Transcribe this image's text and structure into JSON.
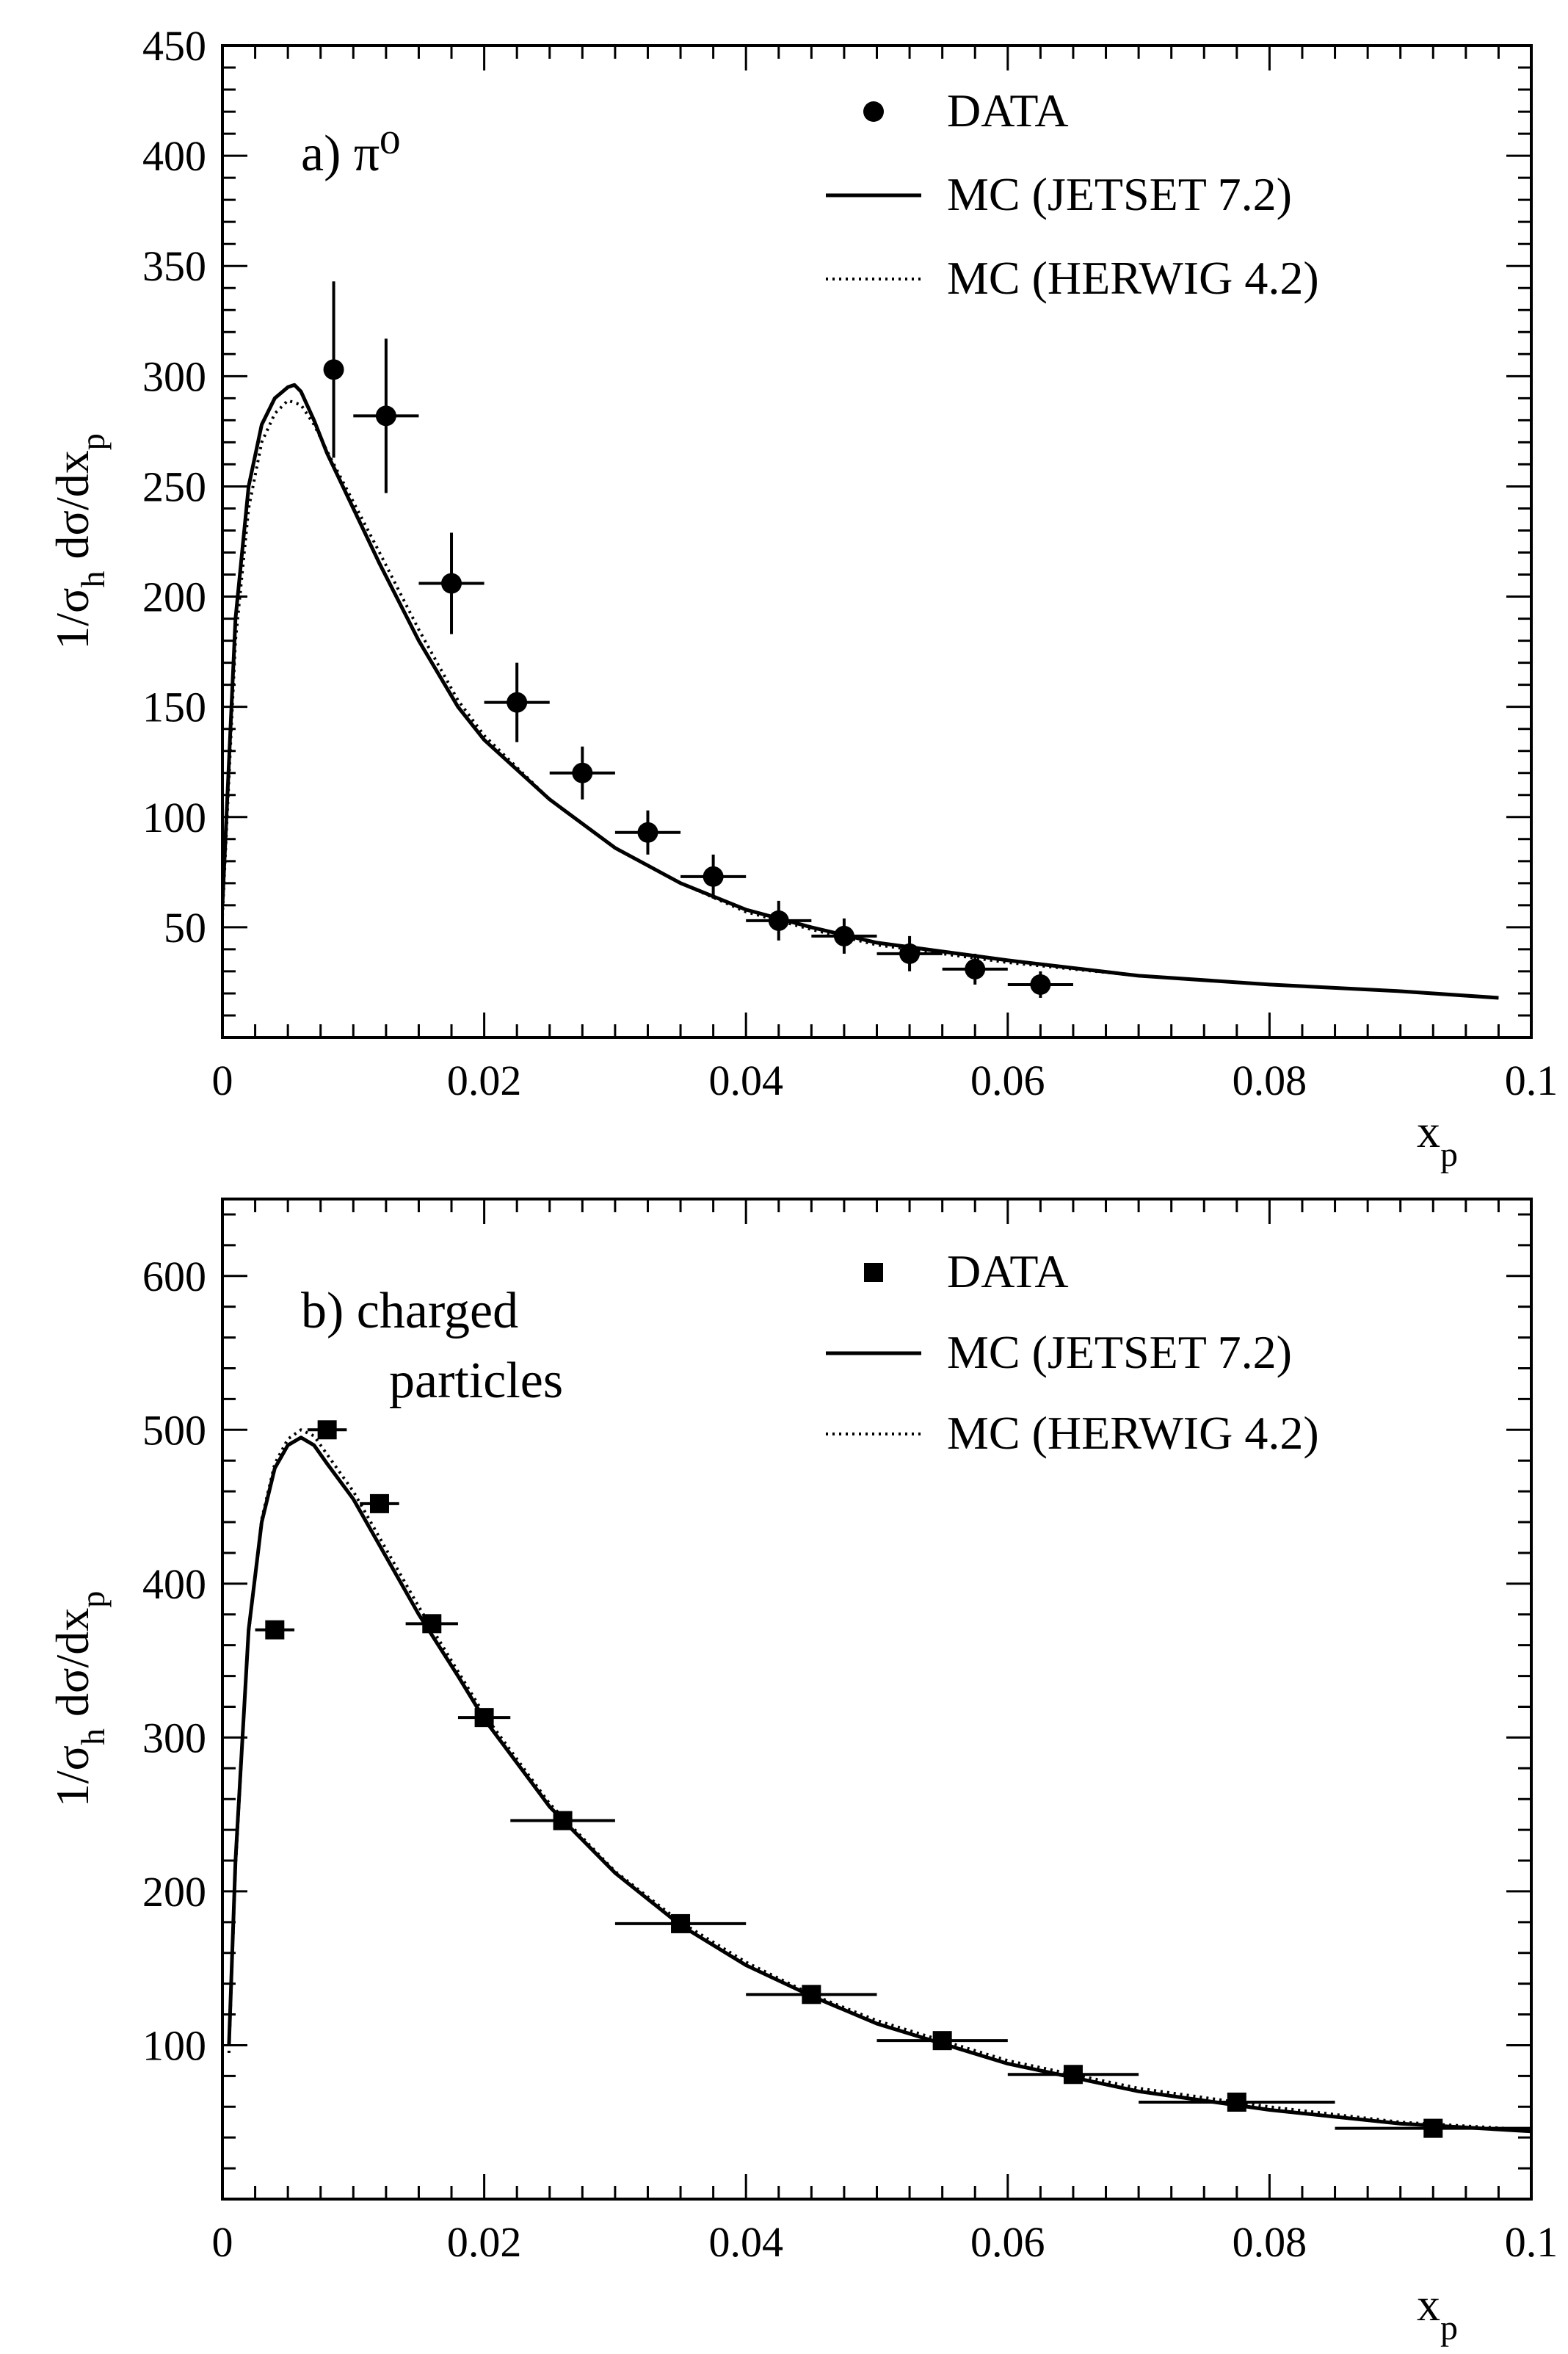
{
  "chart_data": [
    {
      "type": "scatter",
      "panel_label": "a) π⁰",
      "xlabel": "x",
      "xlabel_sub": "p",
      "ylabel": "1/σ",
      "ylabel_sub1": "h",
      "ylabel_mid": " dσ/dx",
      "ylabel_sub2": "p",
      "xlim": [
        0,
        0.1
      ],
      "ylim": [
        0,
        450
      ],
      "x_ticks": [
        0,
        0.02,
        0.04,
        0.06,
        0.08
      ],
      "x_tick_labels": [
        "0",
        "0.02",
        "0.04",
        "0.06",
        "0.08",
        "0.1"
      ],
      "x_tick_values": [
        0,
        0.02,
        0.04,
        0.06,
        0.08,
        0.1
      ],
      "y_tick_values": [
        50,
        100,
        150,
        200,
        250,
        300,
        350,
        400,
        450
      ],
      "y_tick_labels": [
        "50",
        "100",
        "150",
        "200",
        "250",
        "300",
        "350",
        "400",
        "450"
      ],
      "legend": {
        "position": "top-right",
        "entries": [
          {
            "label": "DATA",
            "style": "circle-marker"
          },
          {
            "label": "MC (JETSET 7.2)",
            "style": "solid"
          },
          {
            "label": "MC (HERWIG 4.2)",
            "style": "dotted"
          }
        ]
      },
      "series": [
        {
          "name": "DATA",
          "marker": "circle",
          "points": [
            {
              "x": 0.0085,
              "y": 303,
              "xerr": 0.0,
              "yerr": 40
            },
            {
              "x": 0.0125,
              "y": 282,
              "xerr": 0.0025,
              "yerr": 35
            },
            {
              "x": 0.0175,
              "y": 206,
              "xerr": 0.0025,
              "yerr": 23
            },
            {
              "x": 0.0225,
              "y": 152,
              "xerr": 0.0025,
              "yerr": 18
            },
            {
              "x": 0.0275,
              "y": 120,
              "xerr": 0.0025,
              "yerr": 12
            },
            {
              "x": 0.0325,
              "y": 93,
              "xerr": 0.0025,
              "yerr": 10
            },
            {
              "x": 0.0375,
              "y": 73,
              "xerr": 0.0025,
              "yerr": 10
            },
            {
              "x": 0.0425,
              "y": 53,
              "xerr": 0.0025,
              "yerr": 9
            },
            {
              "x": 0.0475,
              "y": 46,
              "xerr": 0.0025,
              "yerr": 8
            },
            {
              "x": 0.0525,
              "y": 38,
              "xerr": 0.0025,
              "yerr": 8
            },
            {
              "x": 0.0575,
              "y": 31,
              "xerr": 0.0025,
              "yerr": 7
            },
            {
              "x": 0.0625,
              "y": 24,
              "xerr": 0.0025,
              "yerr": 6
            }
          ]
        },
        {
          "name": "MC (JETSET 7.2)",
          "style": "solid",
          "x": [
            0.0,
            0.001,
            0.002,
            0.003,
            0.004,
            0.005,
            0.0055,
            0.006,
            0.007,
            0.008,
            0.01,
            0.012,
            0.015,
            0.018,
            0.02,
            0.025,
            0.03,
            0.035,
            0.04,
            0.045,
            0.05,
            0.06,
            0.07,
            0.08,
            0.09,
            0.0975
          ],
          "y": [
            60,
            190,
            250,
            278,
            290,
            295,
            296,
            293,
            280,
            265,
            240,
            215,
            180,
            150,
            135,
            108,
            86,
            70,
            58,
            50,
            43,
            35,
            28,
            24,
            21,
            18
          ]
        },
        {
          "name": "MC (HERWIG 4.2)",
          "style": "dotted",
          "x": [
            0.0,
            0.001,
            0.002,
            0.003,
            0.004,
            0.005,
            0.006,
            0.007,
            0.008,
            0.01,
            0.012,
            0.015,
            0.018,
            0.02,
            0.025,
            0.03,
            0.035,
            0.04,
            0.045,
            0.05,
            0.06,
            0.07,
            0.08,
            0.09,
            0.0975
          ],
          "y": [
            55,
            180,
            240,
            270,
            283,
            289,
            287,
            278,
            266,
            243,
            220,
            185,
            153,
            137,
            108,
            86,
            70,
            57,
            49,
            42,
            34,
            28,
            24,
            21,
            18
          ]
        }
      ]
    },
    {
      "type": "scatter",
      "panel_label_line1": "b) charged",
      "panel_label_line2": "particles",
      "xlabel": "x",
      "xlabel_sub": "p",
      "ylabel": "1/σ",
      "ylabel_sub1": "h",
      "ylabel_mid": " dσ/dx",
      "ylabel_sub2": "p",
      "xlim": [
        0,
        0.1
      ],
      "ylim": [
        0,
        650
      ],
      "x_tick_labels": [
        "0",
        "0.02",
        "0.04",
        "0.06",
        "0.08",
        "0.1"
      ],
      "x_tick_values": [
        0,
        0.02,
        0.04,
        0.06,
        0.08,
        0.1
      ],
      "y_tick_values": [
        100,
        200,
        300,
        400,
        500,
        600
      ],
      "y_tick_labels": [
        "100",
        "200",
        "300",
        "400",
        "500",
        "600"
      ],
      "legend": {
        "position": "top-right",
        "entries": [
          {
            "label": "DATA",
            "style": "square-marker"
          },
          {
            "label": "MC (JETSET 7.2)",
            "style": "solid"
          },
          {
            "label": "MC (HERWIG 4.2)",
            "style": "dotted"
          }
        ]
      },
      "series": [
        {
          "name": "DATA",
          "marker": "square",
          "points": [
            {
              "x": 0.004,
              "y": 370,
              "xerr": 0.0015,
              "yerr": 5
            },
            {
              "x": 0.008,
              "y": 500,
              "xerr": 0.0015,
              "yerr": 5
            },
            {
              "x": 0.012,
              "y": 452,
              "xerr": 0.0015,
              "yerr": 5
            },
            {
              "x": 0.016,
              "y": 374,
              "xerr": 0.002,
              "yerr": 5
            },
            {
              "x": 0.02,
              "y": 313,
              "xerr": 0.002,
              "yerr": 5
            },
            {
              "x": 0.026,
              "y": 246,
              "xerr": 0.004,
              "yerr": 5
            },
            {
              "x": 0.035,
              "y": 179,
              "xerr": 0.005,
              "yerr": 4
            },
            {
              "x": 0.045,
              "y": 133,
              "xerr": 0.005,
              "yerr": 4
            },
            {
              "x": 0.055,
              "y": 103,
              "xerr": 0.005,
              "yerr": 3
            },
            {
              "x": 0.065,
              "y": 81,
              "xerr": 0.005,
              "yerr": 3
            },
            {
              "x": 0.0775,
              "y": 63,
              "xerr": 0.0075,
              "yerr": 3
            },
            {
              "x": 0.0925,
              "y": 46,
              "xerr": 0.0075,
              "yerr": 3
            }
          ]
        },
        {
          "name": "MC (JETSET 7.2)",
          "style": "solid",
          "x": [
            0.0005,
            0.001,
            0.002,
            0.003,
            0.004,
            0.005,
            0.006,
            0.007,
            0.008,
            0.01,
            0.012,
            0.015,
            0.018,
            0.02,
            0.025,
            0.03,
            0.035,
            0.04,
            0.045,
            0.05,
            0.06,
            0.07,
            0.08,
            0.09,
            0.1
          ],
          "y": [
            100,
            220,
            370,
            440,
            475,
            490,
            495,
            490,
            478,
            455,
            425,
            380,
            340,
            312,
            255,
            212,
            178,
            152,
            132,
            114,
            88,
            70,
            58,
            49,
            44
          ]
        },
        {
          "name": "MC (HERWIG 4.2)",
          "style": "dotted",
          "x": [
            0.0005,
            0.001,
            0.002,
            0.003,
            0.004,
            0.005,
            0.006,
            0.007,
            0.008,
            0.01,
            0.012,
            0.015,
            0.018,
            0.02,
            0.025,
            0.03,
            0.035,
            0.04,
            0.045,
            0.05,
            0.06,
            0.07,
            0.08,
            0.09,
            0.1
          ],
          "y": [
            95,
            215,
            368,
            442,
            478,
            494,
            500,
            496,
            484,
            460,
            430,
            385,
            343,
            315,
            257,
            213,
            180,
            154,
            133,
            116,
            90,
            72,
            60,
            50,
            45
          ]
        }
      ]
    }
  ]
}
